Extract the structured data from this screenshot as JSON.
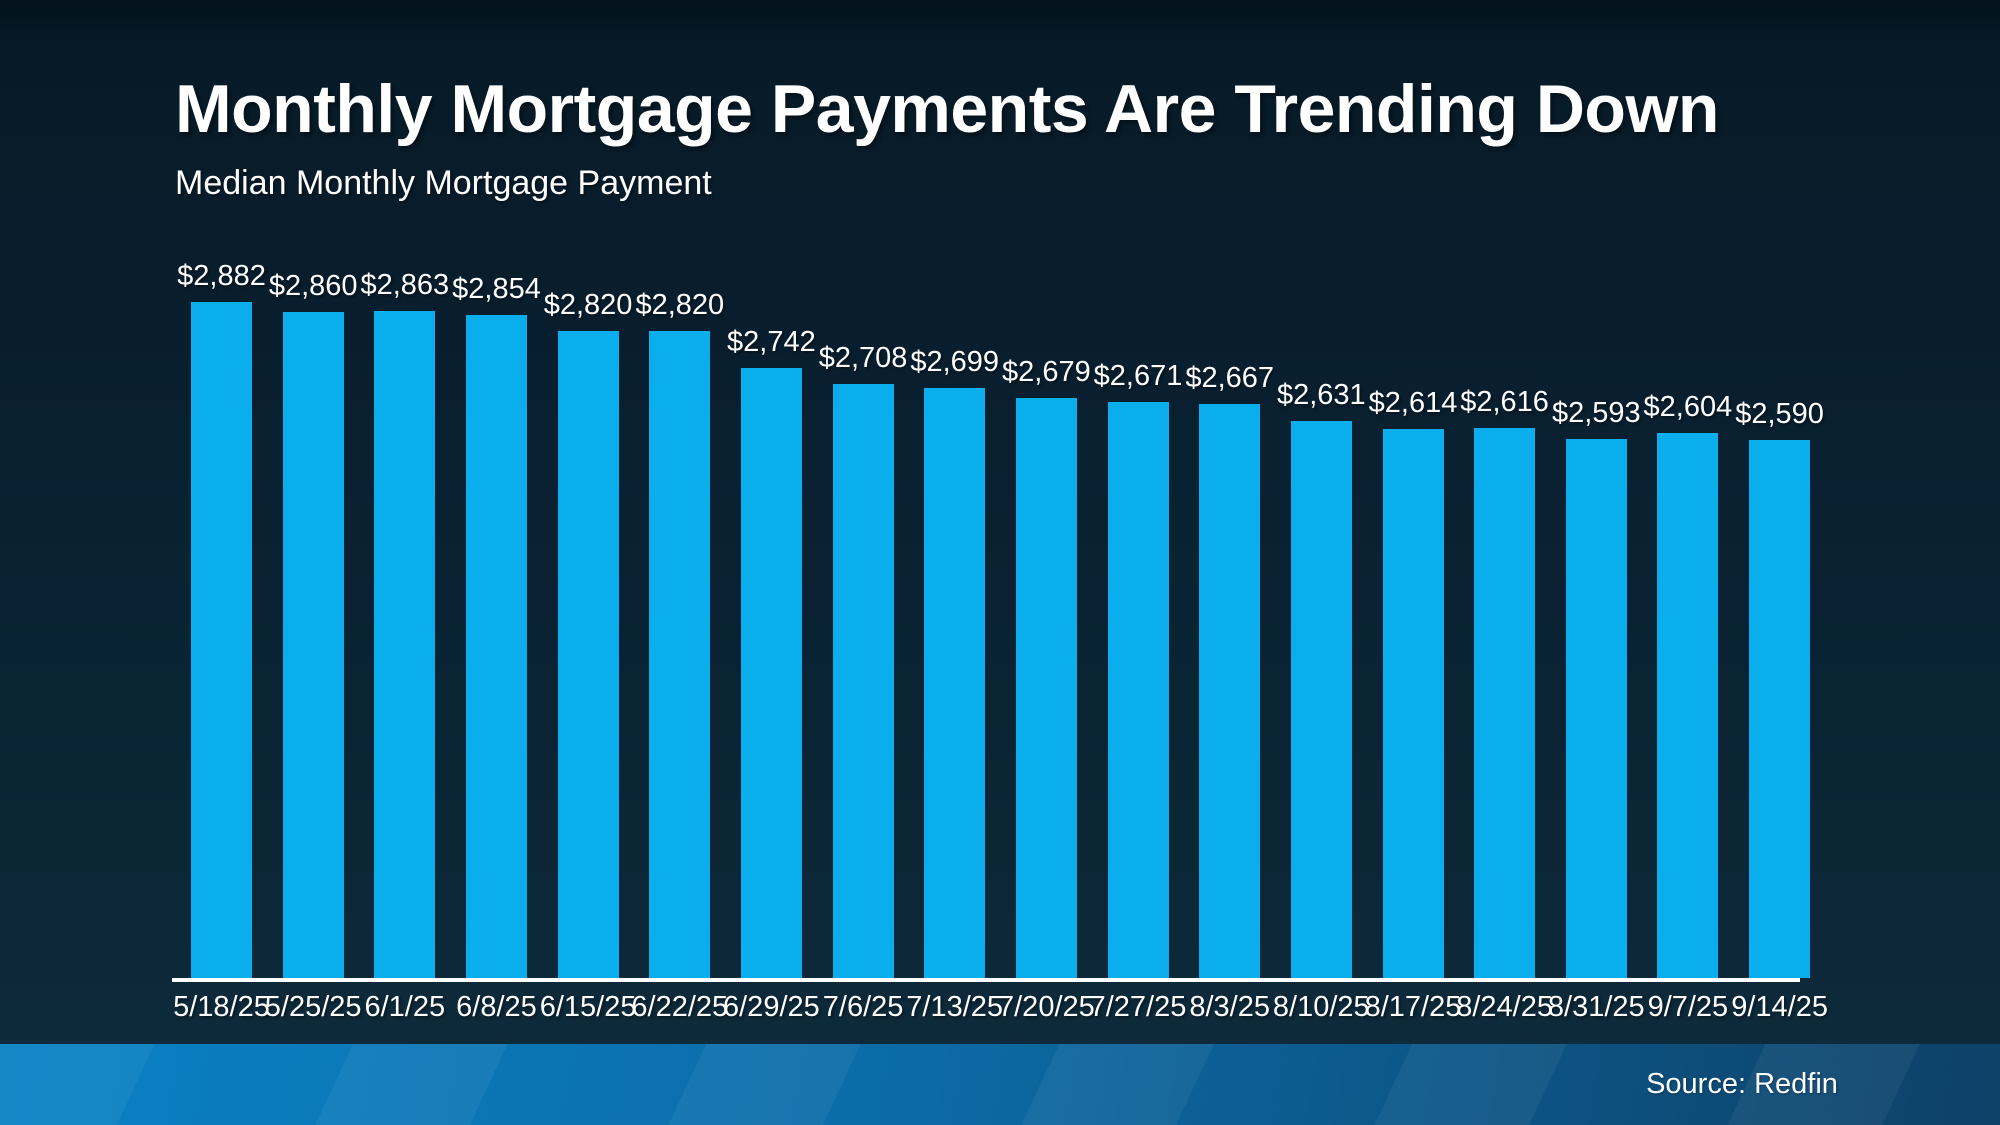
{
  "page": {
    "title": "Monthly Mortgage Payments Are Trending Down",
    "subtitle": "Median Monthly Mortgage Payment",
    "source_label": "Source: Redfin"
  },
  "colors": {
    "background_top": "#071a27",
    "background_bottom": "#0e2c3d",
    "bar": "#0aaeec",
    "axis_line": "#ffffff",
    "text": "#ffffff",
    "footer_gradient_left": "#0a82c6",
    "footer_gradient_right": "#0d4168"
  },
  "chart_data": {
    "type": "bar",
    "title": "Monthly Mortgage Payments Are Trending Down",
    "subtitle": "Median Monthly Mortgage Payment",
    "categories": [
      "5/18/25",
      "5/25/25",
      "6/1/25",
      "6/8/25",
      "6/15/25",
      "6/22/25",
      "6/29/25",
      "7/6/25",
      "7/13/25",
      "7/20/25",
      "7/27/25",
      "8/3/25",
      "8/10/25",
      "8/17/25",
      "8/24/25",
      "8/31/25",
      "9/7/25",
      "9/14/25"
    ],
    "values": [
      2882,
      2860,
      2863,
      2854,
      2820,
      2820,
      2742,
      2708,
      2699,
      2679,
      2671,
      2667,
      2631,
      2614,
      2616,
      2593,
      2604,
      2590
    ],
    "value_labels": [
      "$2,882",
      "$2,860",
      "$2,863",
      "$2,854",
      "$2,820",
      "$2,820",
      "$2,742",
      "$2,708",
      "$2,699",
      "$2,679",
      "$2,671",
      "$2,667",
      "$2,631",
      "$2,614",
      "$2,616",
      "$2,593",
      "$2,604",
      "$2,590"
    ],
    "xlabel": "",
    "ylabel": "",
    "ylim": [
      1450,
      2950
    ],
    "grid": false,
    "legend": false,
    "data_labels": true,
    "source": "Source: Redfin"
  }
}
